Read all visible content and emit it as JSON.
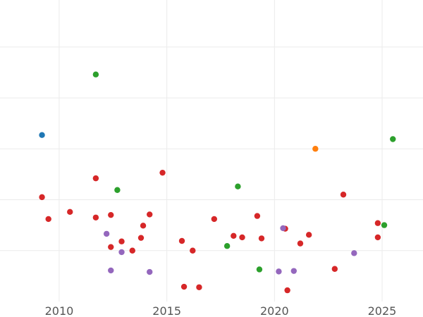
{
  "chart_data": {
    "type": "scatter",
    "title": "",
    "xlabel": "",
    "ylabel": "",
    "xlim": [
      2007.25,
      2026.9
    ],
    "ylim": [
      0,
      5.84
    ],
    "grid": true,
    "legend": "none",
    "x_ticks": [
      {
        "value": 2010,
        "label": "2010"
      },
      {
        "value": 2015,
        "label": "2015"
      },
      {
        "value": 2020,
        "label": "2020"
      },
      {
        "value": 2025,
        "label": "2025"
      }
    ],
    "y_gridlines": [
      1,
      2,
      3,
      4,
      5
    ],
    "series": [
      {
        "color": "#d62728",
        "points": [
          {
            "x": 2009.2,
            "y": 2.05
          },
          {
            "x": 2009.5,
            "y": 1.62
          },
          {
            "x": 2010.5,
            "y": 1.76
          },
          {
            "x": 2011.7,
            "y": 2.42
          },
          {
            "x": 2011.7,
            "y": 1.65
          },
          {
            "x": 2012.4,
            "y": 1.7
          },
          {
            "x": 2012.4,
            "y": 1.07
          },
          {
            "x": 2012.9,
            "y": 1.18
          },
          {
            "x": 2013.4,
            "y": 1.0
          },
          {
            "x": 2013.8,
            "y": 1.25
          },
          {
            "x": 2013.9,
            "y": 1.49
          },
          {
            "x": 2014.2,
            "y": 1.71
          },
          {
            "x": 2014.8,
            "y": 2.53
          },
          {
            "x": 2015.7,
            "y": 1.19
          },
          {
            "x": 2015.8,
            "y": 0.29
          },
          {
            "x": 2016.2,
            "y": 1.0
          },
          {
            "x": 2016.5,
            "y": 0.28
          },
          {
            "x": 2017.2,
            "y": 1.62
          },
          {
            "x": 2018.1,
            "y": 1.29
          },
          {
            "x": 2018.5,
            "y": 1.26
          },
          {
            "x": 2019.2,
            "y": 1.68
          },
          {
            "x": 2019.4,
            "y": 1.24
          },
          {
            "x": 2020.5,
            "y": 1.43
          },
          {
            "x": 2020.6,
            "y": 0.22
          },
          {
            "x": 2021.2,
            "y": 1.14
          },
          {
            "x": 2021.6,
            "y": 1.31
          },
          {
            "x": 2022.8,
            "y": 0.64
          },
          {
            "x": 2023.2,
            "y": 2.1
          },
          {
            "x": 2024.8,
            "y": 1.54
          },
          {
            "x": 2024.8,
            "y": 1.26
          }
        ]
      },
      {
        "color": "#2ca02c",
        "points": [
          {
            "x": 2011.7,
            "y": 4.46
          },
          {
            "x": 2012.7,
            "y": 2.19
          },
          {
            "x": 2017.8,
            "y": 1.09
          },
          {
            "x": 2018.3,
            "y": 2.26
          },
          {
            "x": 2019.3,
            "y": 0.63
          },
          {
            "x": 2025.1,
            "y": 1.5
          },
          {
            "x": 2025.5,
            "y": 3.19
          }
        ]
      },
      {
        "color": "#9467bd",
        "points": [
          {
            "x": 2012.2,
            "y": 1.33
          },
          {
            "x": 2012.4,
            "y": 0.61
          },
          {
            "x": 2012.9,
            "y": 0.97
          },
          {
            "x": 2014.2,
            "y": 0.58
          },
          {
            "x": 2020.2,
            "y": 0.59
          },
          {
            "x": 2020.4,
            "y": 1.44
          },
          {
            "x": 2020.9,
            "y": 0.6
          },
          {
            "x": 2023.7,
            "y": 0.95
          }
        ]
      },
      {
        "color": "#1f77b4",
        "points": [
          {
            "x": 2009.2,
            "y": 3.27
          }
        ]
      },
      {
        "color": "#ff7f0e",
        "points": [
          {
            "x": 2021.9,
            "y": 3.0
          }
        ]
      }
    ]
  }
}
